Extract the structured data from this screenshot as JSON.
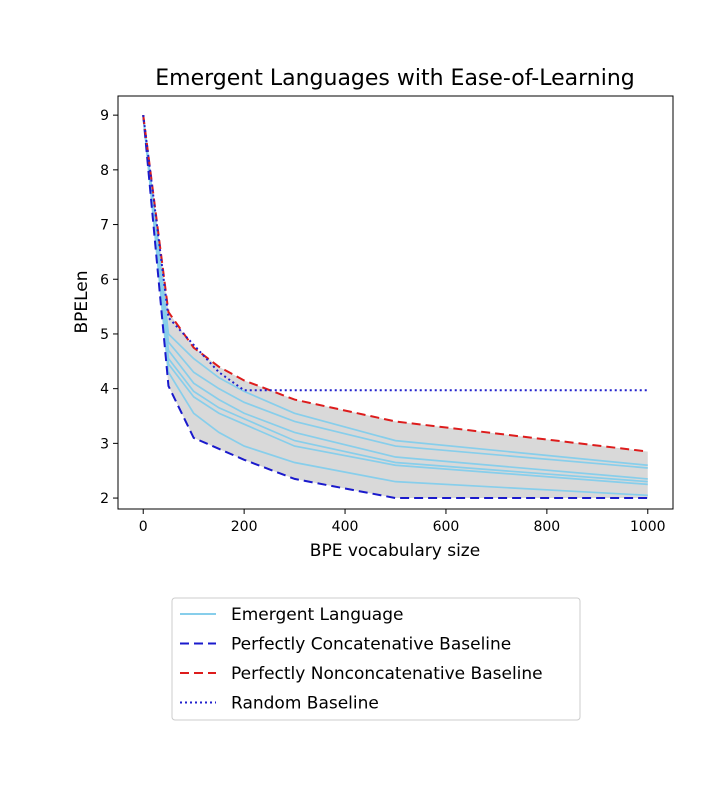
{
  "chart_data": {
    "type": "line",
    "title": "Emergent Languages with Ease-of-Learning",
    "xlabel": "BPE vocabulary size",
    "ylabel": "BPELen",
    "xlim": [
      -50,
      1050
    ],
    "ylim": [
      1.8,
      9.35
    ],
    "xticks": [
      0,
      200,
      400,
      600,
      800,
      1000
    ],
    "yticks": [
      2,
      3,
      4,
      5,
      6,
      7,
      8,
      9
    ],
    "grid": false,
    "legend_position": "bottom",
    "x": [
      0,
      50,
      100,
      150,
      200,
      300,
      500,
      1000
    ],
    "series": [
      {
        "name": "Emergent Language",
        "style": "solid",
        "color": "#87ceeb",
        "values": [
          9.0,
          5.0,
          4.55,
          4.2,
          3.95,
          3.55,
          3.05,
          2.6
        ]
      },
      {
        "name": "",
        "style": "solid",
        "color": "#87ceeb",
        "values": [
          9.0,
          4.85,
          4.3,
          4.0,
          3.75,
          3.4,
          2.95,
          2.55
        ]
      },
      {
        "name": "",
        "style": "solid",
        "color": "#87ceeb",
        "values": [
          9.0,
          4.7,
          4.1,
          3.8,
          3.55,
          3.2,
          2.75,
          2.35
        ]
      },
      {
        "name": "",
        "style": "solid",
        "color": "#87ceeb",
        "values": [
          9.0,
          4.55,
          3.95,
          3.65,
          3.45,
          3.05,
          2.65,
          2.3
        ]
      },
      {
        "name": "",
        "style": "solid",
        "color": "#87ceeb",
        "values": [
          9.0,
          4.45,
          3.85,
          3.55,
          3.35,
          2.95,
          2.6,
          2.25
        ]
      },
      {
        "name": "",
        "style": "solid",
        "color": "#87ceeb",
        "values": [
          9.0,
          4.3,
          3.55,
          3.2,
          2.95,
          2.65,
          2.3,
          2.05
        ]
      },
      {
        "name": "Perfectly Concatenative Baseline",
        "style": "dashed",
        "color": "#1a1acc",
        "values": [
          9.0,
          4.05,
          3.1,
          2.9,
          2.7,
          2.35,
          2.0,
          2.0
        ]
      },
      {
        "name": "Perfectly Nonconcatenative Baseline",
        "style": "dashed",
        "color": "#dd1c1c",
        "values": [
          9.0,
          5.4,
          4.75,
          4.4,
          4.15,
          3.8,
          3.4,
          2.85
        ]
      },
      {
        "name": "Random Baseline",
        "style": "dotted",
        "color": "#2020cc",
        "values": [
          9.0,
          5.3,
          4.8,
          4.3,
          3.97,
          3.97,
          3.97,
          3.97
        ]
      }
    ],
    "band": {
      "color": "#d9d9d9",
      "upper_series": 7,
      "lower_series": 6
    }
  }
}
